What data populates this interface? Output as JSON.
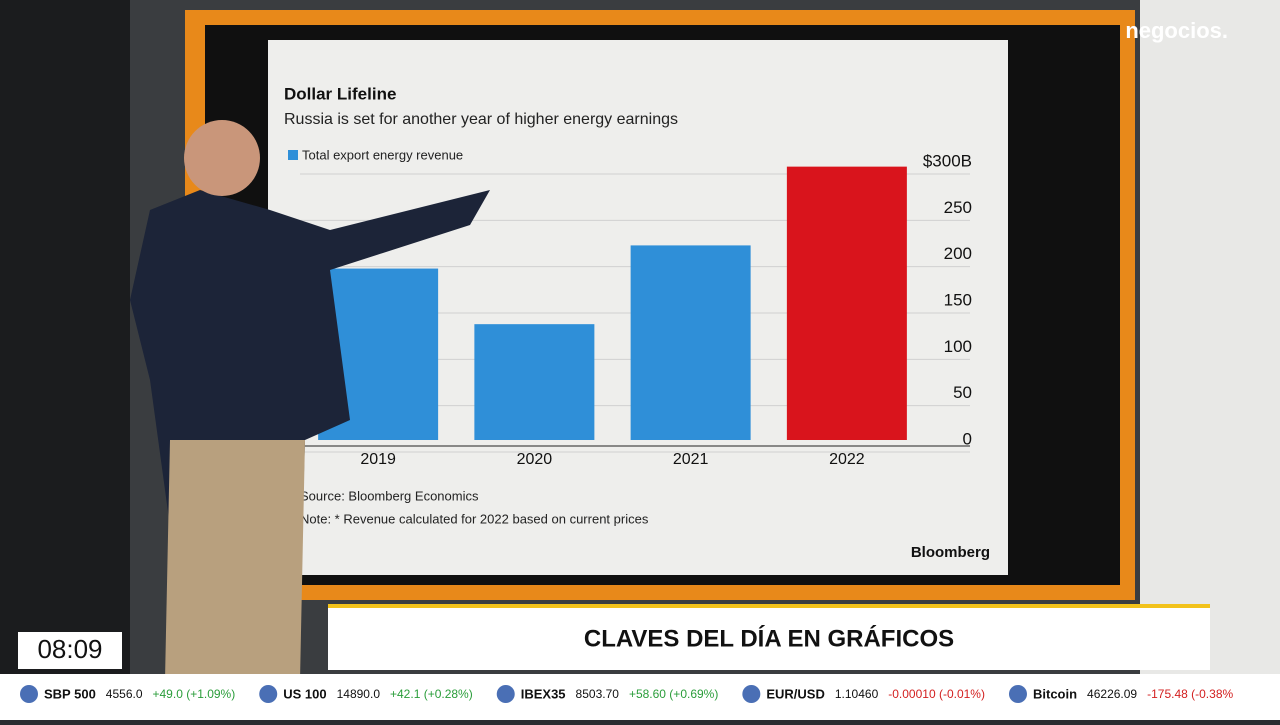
{
  "logo": "negocios.",
  "chart_data": {
    "type": "bar",
    "title": "Dollar Lifeline",
    "subtitle": "Russia is set for another year of higher energy earnings",
    "categories": [
      "2019",
      "2020",
      "2021",
      "2022"
    ],
    "series": [
      {
        "name": "Total export energy revenue",
        "color": "#2f8fd8",
        "values": [
          185,
          125,
          210,
          295
        ]
      }
    ],
    "bar_colors": [
      "#2f8fd8",
      "#2f8fd8",
      "#2f8fd8",
      "#d9141c"
    ],
    "ylim": [
      0,
      300
    ],
    "yticks": [
      0,
      50,
      100,
      150,
      200,
      250,
      {
        "value": 300,
        "label": "$300B"
      }
    ],
    "source": "Source: Bloomberg Economics",
    "note": "Note: * Revenue calculated for 2022 based on current prices",
    "brand": "Bloomberg"
  },
  "lower_third": {
    "title": "CLAVES DEL DÍA EN GRÁFICOS",
    "clock": "08:09"
  },
  "ticker": [
    {
      "name": "SBP 500",
      "value": "4556.0",
      "change": "+49.0 (+1.09%)",
      "up": true
    },
    {
      "name": "US 100",
      "value": "14890.0",
      "change": "+42.1 (+0.28%)",
      "up": true
    },
    {
      "name": "IBEX35",
      "value": "8503.70",
      "change": "+58.60 (+0.69%)",
      "up": true
    },
    {
      "name": "EUR/USD",
      "value": "1.10460",
      "change": "-0.00010 (-0.01%)",
      "up": false
    },
    {
      "name": "Bitcoin",
      "value": "46226.09",
      "change": "-175.48 (-0.38%",
      "up": false
    }
  ]
}
